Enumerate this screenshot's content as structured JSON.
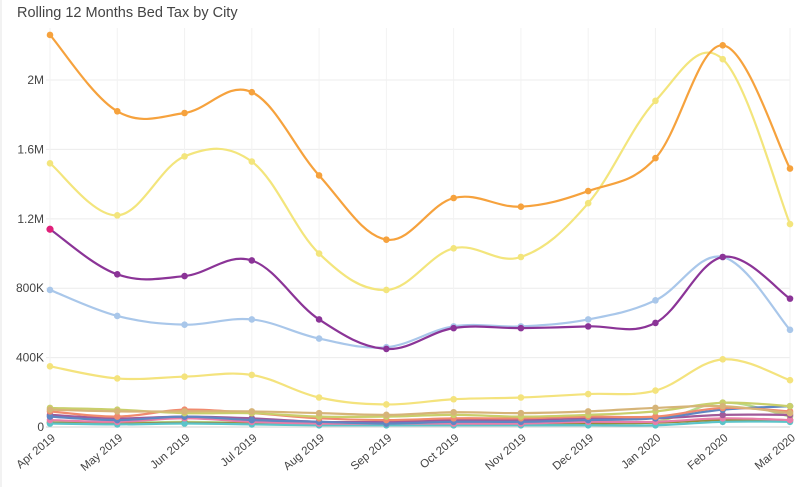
{
  "chart_data": {
    "type": "line",
    "title": "Rolling 12 Months Bed Tax by City",
    "categories": [
      "Apr 2019",
      "May 2019",
      "Jun 2019",
      "Jul 2019",
      "Aug 2019",
      "Sep 2019",
      "Oct 2019",
      "Nov 2019",
      "Dec 2019",
      "Jan 2020",
      "Feb 2020",
      "Mar 2020"
    ],
    "y_ticks": [
      {
        "value": 0,
        "label": "0"
      },
      {
        "value": 400000,
        "label": "400K"
      },
      {
        "value": 800000,
        "label": "800K"
      },
      {
        "value": 1200000,
        "label": "1.2M"
      },
      {
        "value": 1600000,
        "label": "1.6M"
      },
      {
        "value": 2000000,
        "label": "2M"
      }
    ],
    "ylim": [
      0,
      2300000
    ],
    "grid": true,
    "series": [
      {
        "color": "#f6a23d",
        "values": [
          2260000,
          1820000,
          1810000,
          1930000,
          1450000,
          1080000,
          1320000,
          1270000,
          1360000,
          1550000,
          2200000,
          1490000
        ]
      },
      {
        "color": "#f3e57c",
        "values": [
          1520000,
          1220000,
          1560000,
          1530000,
          1000000,
          790000,
          1030000,
          980000,
          1290000,
          1880000,
          2120000,
          1170000
        ]
      },
      {
        "color": "#8b3497",
        "values": [
          1140000,
          880000,
          870000,
          960000,
          620000,
          450000,
          570000,
          570000,
          580000,
          600000,
          980000,
          740000
        ]
      },
      {
        "color": "#a9c7ea",
        "values": [
          790000,
          640000,
          590000,
          620000,
          510000,
          460000,
          580000,
          580000,
          620000,
          730000,
          980000,
          560000
        ]
      },
      {
        "color": "#f4e37d",
        "values": [
          350000,
          280000,
          290000,
          300000,
          170000,
          130000,
          160000,
          170000,
          190000,
          210000,
          390000,
          270000
        ]
      },
      {
        "color": "#d6b478",
        "values": [
          100000,
          90000,
          90000,
          90000,
          80000,
          70000,
          85000,
          80000,
          90000,
          110000,
          120000,
          80000
        ]
      },
      {
        "color": "#c9cf6b",
        "values": [
          110000,
          100000,
          80000,
          80000,
          60000,
          60000,
          70000,
          60000,
          70000,
          90000,
          140000,
          120000
        ]
      },
      {
        "color": "#f08a6e",
        "values": [
          90000,
          60000,
          100000,
          80000,
          50000,
          40000,
          50000,
          50000,
          60000,
          60000,
          110000,
          90000
        ]
      },
      {
        "color": "#5f86c2",
        "values": [
          60000,
          40000,
          60000,
          40000,
          30000,
          20000,
          30000,
          30000,
          40000,
          50000,
          100000,
          120000
        ]
      },
      {
        "color": "#a05a9a",
        "values": [
          70000,
          50000,
          60000,
          50000,
          30000,
          30000,
          40000,
          40000,
          50000,
          50000,
          70000,
          70000
        ]
      },
      {
        "color": "#e87da8",
        "values": [
          40000,
          30000,
          50000,
          30000,
          20000,
          20000,
          20000,
          20000,
          30000,
          30000,
          50000,
          40000
        ]
      },
      {
        "color": "#5bc4c9",
        "values": [
          20000,
          15000,
          20000,
          15000,
          10000,
          10000,
          10000,
          10000,
          10000,
          10000,
          30000,
          30000
        ]
      },
      {
        "color": "#9b8a3a",
        "values": [
          25000,
          20000,
          25000,
          20000,
          15000,
          15000,
          20000,
          20000,
          20000,
          25000,
          40000,
          40000
        ]
      },
      {
        "color": "#b7d98a",
        "values": [
          30000,
          25000,
          30000,
          25000,
          20000,
          20000,
          25000,
          25000,
          30000,
          30000,
          140000,
          60000
        ]
      }
    ]
  }
}
